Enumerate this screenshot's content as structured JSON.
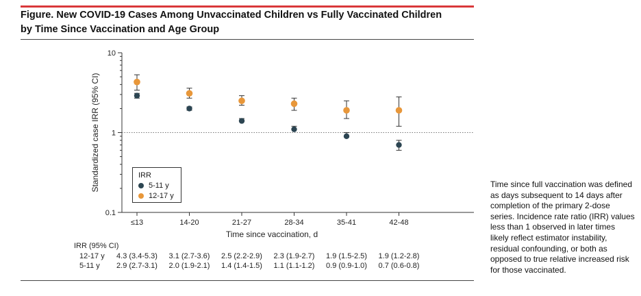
{
  "figure": {
    "title_line1": "Figure. New COVID-19 Cases Among Unvaccinated Children vs Fully Vaccinated Children",
    "title_line2": "by Time Since Vaccination and Age Group",
    "footnote": "Time since full vaccination was defined as days subsequent to 14 days after completion of the primary 2-dose series. Incidence rate ratio (IRR) values less than 1 observed in later times likely reflect estimator instability, residual confounding, or both as opposed to true relative increased risk for those vaccinated.",
    "colors": {
      "accent_rule": "#d9383a",
      "series_5_11": "#2c4552",
      "series_12_17": "#e8973a"
    }
  },
  "chart_data": {
    "type": "scatter",
    "title": "",
    "xlabel": "Time since vaccination, d",
    "ylabel": "Standardized case IRR (95% CI)",
    "y_scale": "log",
    "ylim": [
      0.1,
      10
    ],
    "y_ticks": [
      "0.1",
      "1",
      "10"
    ],
    "reference_line": 1,
    "categories": [
      "≤13",
      "14-20",
      "21-27",
      "28-34",
      "35-41",
      "42-48"
    ],
    "legend": {
      "title": "IRR",
      "placement": "bottom-left"
    },
    "series": [
      {
        "name": "5-11 y",
        "color": "#2c4552",
        "values": [
          2.9,
          2.0,
          1.4,
          1.1,
          0.9,
          0.7
        ],
        "ci_low": [
          2.7,
          1.9,
          1.4,
          1.1,
          0.9,
          0.6
        ],
        "ci_high": [
          3.1,
          2.1,
          1.5,
          1.2,
          1.0,
          0.8
        ]
      },
      {
        "name": "12-17 y",
        "color": "#e8973a",
        "values": [
          4.3,
          3.1,
          2.5,
          2.3,
          1.9,
          1.9
        ],
        "ci_low": [
          3.4,
          2.7,
          2.2,
          1.9,
          1.5,
          1.2
        ],
        "ci_high": [
          5.3,
          3.6,
          2.9,
          2.7,
          2.5,
          2.8
        ]
      }
    ],
    "table": {
      "header": "IRR (95% CI)",
      "rows": [
        {
          "label": "12-17 y",
          "cells": [
            "4.3 (3.4-5.3)",
            "3.1 (2.7-3.6)",
            "2.5 (2.2-2.9)",
            "2.3 (1.9-2.7)",
            "1.9 (1.5-2.5)",
            "1.9 (1.2-2.8)"
          ]
        },
        {
          "label": "5-11 y",
          "cells": [
            "2.9 (2.7-3.1)",
            "2.0 (1.9-2.1)",
            "1.4 (1.4-1.5)",
            "1.1 (1.1-1.2)",
            "0.9 (0.9-1.0)",
            "0.7 (0.6-0.8)"
          ]
        }
      ]
    }
  }
}
